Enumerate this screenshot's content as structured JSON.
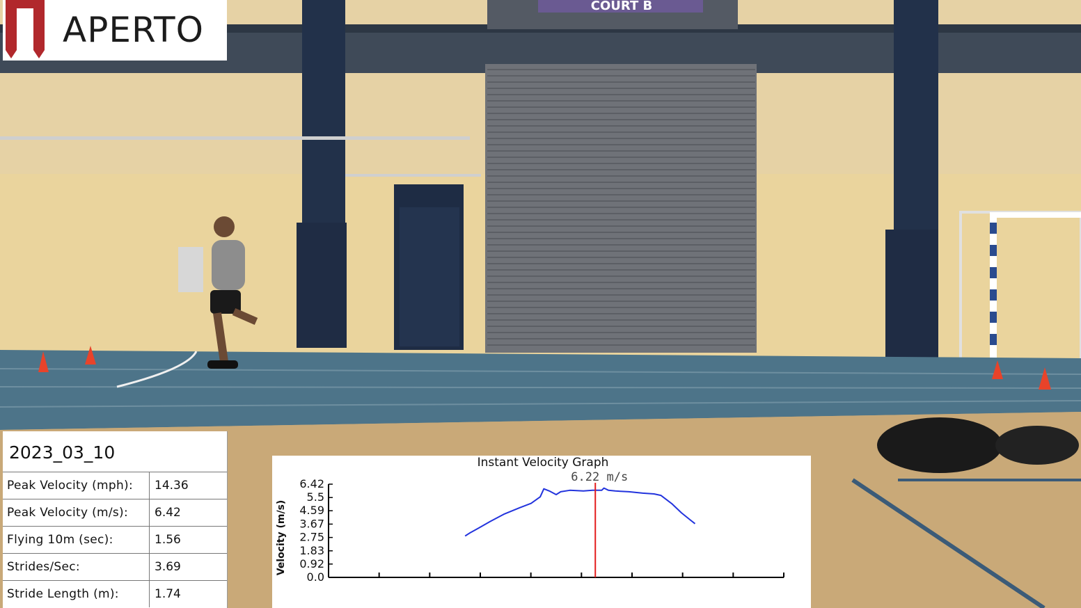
{
  "logo": {
    "text": "APERTO"
  },
  "scene": {
    "sign_text": "COURT B"
  },
  "stats": {
    "date": "2023_03_10",
    "rows": [
      {
        "label": "Peak Velocity (mph):",
        "value": "14.36"
      },
      {
        "label": "Peak Velocity (m/s):",
        "value": "6.42"
      },
      {
        "label": "Flying 10m (sec):",
        "value": "1.56"
      },
      {
        "label": "Strides/Sec:",
        "value": "3.69"
      },
      {
        "label": "Stride Length (m):",
        "value": "1.74"
      }
    ]
  },
  "colors": {
    "accent_red": "#b1282c",
    "line_blue": "#2233dd",
    "marker_red": "#e31b1b",
    "track_blue": "#4d7489",
    "wall": "#e9d39c",
    "floor": "#c9a978"
  },
  "chart_data": {
    "type": "line",
    "title": "Instant Velocity Graph",
    "ylabel": "Velocity (m/s)",
    "xlabel": "",
    "ylim": [
      0.0,
      6.42
    ],
    "y_ticks": [
      "0.0",
      "0.92",
      "1.83",
      "2.75",
      "3.67",
      "4.59",
      "5.5",
      "6.42"
    ],
    "x_tick_count": 9,
    "xlim": [
      0,
      100
    ],
    "marker": {
      "x": 58.6,
      "label": "6.22 m/s"
    },
    "series": [
      {
        "values": [
          [
            30.0,
            2.85
          ],
          [
            31.0,
            3.05
          ],
          [
            33.0,
            3.4
          ],
          [
            35.5,
            3.85
          ],
          [
            38.5,
            4.35
          ],
          [
            42.0,
            4.8
          ],
          [
            44.5,
            5.1
          ],
          [
            46.5,
            5.55
          ],
          [
            47.3,
            6.1
          ],
          [
            48.5,
            5.95
          ],
          [
            50.0,
            5.7
          ],
          [
            51.0,
            5.9
          ],
          [
            53.0,
            6.0
          ],
          [
            56.0,
            5.95
          ],
          [
            58.0,
            6.0
          ],
          [
            60.0,
            6.0
          ],
          [
            60.5,
            6.15
          ],
          [
            61.5,
            6.0
          ],
          [
            63.0,
            5.95
          ],
          [
            66.0,
            5.9
          ],
          [
            69.0,
            5.8
          ],
          [
            71.5,
            5.75
          ],
          [
            73.0,
            5.65
          ],
          [
            75.5,
            5.05
          ],
          [
            77.5,
            4.45
          ],
          [
            79.5,
            3.95
          ],
          [
            80.5,
            3.7
          ]
        ]
      }
    ]
  }
}
